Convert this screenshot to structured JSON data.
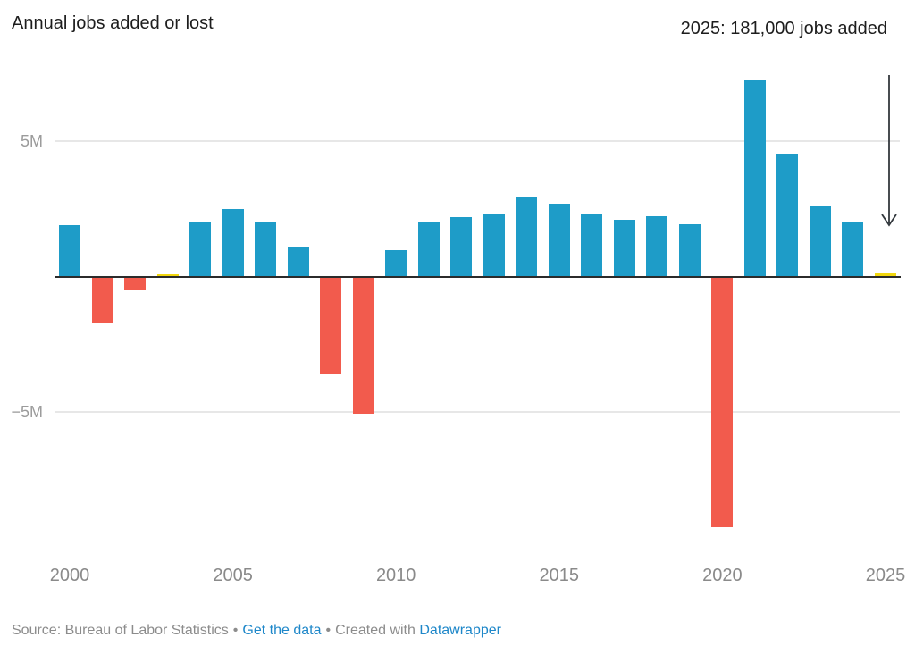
{
  "title": "Annual jobs added or lost",
  "annotation": {
    "text": "2025: 181,000 jobs added",
    "arrow": "down"
  },
  "y_axis": {
    "labels": [
      "5M",
      "−5M"
    ]
  },
  "x_axis": {
    "ticks": [
      "2000",
      "2005",
      "2010",
      "2015",
      "2020",
      "2025"
    ]
  },
  "footer": {
    "source_text": "Source: Bureau of Labor Statistics",
    "separator": "•",
    "data_link": "Get the data",
    "created_with": "Created with",
    "brand_link": "Datawrapper"
  },
  "colors": {
    "bar_positive": "#1e9cc8",
    "bar_negative": "#f25b4d",
    "bar_highlight": "#f2d70e",
    "axis_line": "#2b2b2b",
    "gridline": "#e7e7e7",
    "tick_text": "#8a8a8a",
    "title_text": "#1d1d1d",
    "footer_text": "#8c8c8c",
    "link": "#1e87c9"
  },
  "chart_data": {
    "type": "bar",
    "title": "Annual jobs added or lost",
    "unit": "millions of jobs",
    "x": [
      2000,
      2001,
      2002,
      2003,
      2004,
      2005,
      2006,
      2007,
      2008,
      2009,
      2010,
      2011,
      2012,
      2013,
      2014,
      2015,
      2016,
      2017,
      2018,
      2019,
      2020,
      2021,
      2022,
      2023,
      2024,
      2025
    ],
    "values_millions": [
      1.9,
      -1.7,
      -0.5,
      0.11,
      2.0,
      2.5,
      2.05,
      1.1,
      -3.6,
      -5.05,
      1.0,
      2.05,
      2.2,
      2.3,
      2.95,
      2.7,
      2.3,
      2.1,
      2.25,
      1.95,
      -9.25,
      7.25,
      4.55,
      2.6,
      2.0,
      0.18
    ],
    "highlight_years": [
      2003,
      2025
    ],
    "annotation": "2025: 181,000 jobs added",
    "annotation_points_to_year": 2025,
    "y_gridlines": [
      5,
      -5
    ],
    "y_tick_labels": [
      "5M",
      "−5M"
    ],
    "x_tick_labels": [
      "2000",
      "2005",
      "2010",
      "2015",
      "2020",
      "2025"
    ],
    "ylim": [
      -9.6,
      7.6
    ],
    "grid": "horizontal-only",
    "legend": "none",
    "xlabel": "",
    "ylabel": ""
  }
}
